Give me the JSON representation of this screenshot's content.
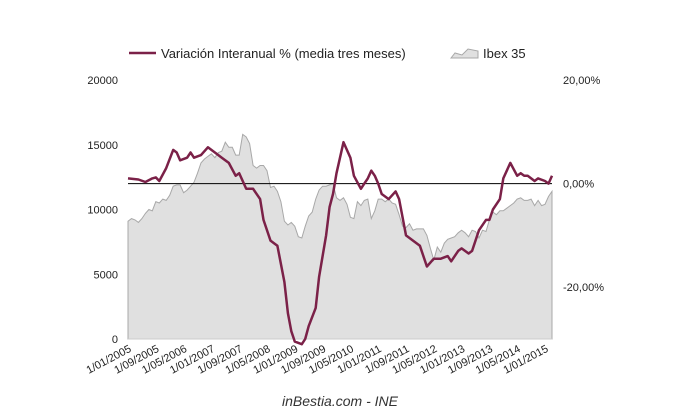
{
  "chart_data": {
    "type": "line+area",
    "legend": {
      "line_label": "Variación Interanual % (media tres meses)",
      "area_label": "Ibex 35",
      "position": "top"
    },
    "colors": {
      "line": "#7b2148",
      "area_fill": "#e0e0e0",
      "area_stroke": "#a8a8a8",
      "zero_line": "#000000"
    },
    "x_tick_labels": [
      "1/01/2005",
      "1/09/2005",
      "1/05/2006",
      "1/01/2007",
      "1/09/2007",
      "1/05/2008",
      "1/01/2009",
      "1/09/2009",
      "1/05/2010",
      "1/01/2011",
      "1/09/2011",
      "1/05/2012",
      "1/01/2013",
      "1/09/2013",
      "1/05/2014",
      "1/01/2015"
    ],
    "x_range": [
      "2005-01",
      "2015-03"
    ],
    "left_axis": {
      "label": "",
      "ticks": [
        "20000",
        "15000",
        "10000",
        "5000",
        "0"
      ],
      "ylim": [
        0,
        20000
      ]
    },
    "right_axis": {
      "label": "",
      "ticks": [
        "20,00%",
        "0,00%",
        "-20,00%"
      ],
      "ylim": [
        -30,
        20
      ]
    },
    "grid": false,
    "ibex_35": [
      [
        "2005-01",
        9100
      ],
      [
        "2005-02",
        9300
      ],
      [
        "2005-03",
        9200
      ],
      [
        "2005-04",
        9000
      ],
      [
        "2005-05",
        9300
      ],
      [
        "2005-06",
        9700
      ],
      [
        "2005-07",
        10000
      ],
      [
        "2005-08",
        9900
      ],
      [
        "2005-09",
        10600
      ],
      [
        "2005-10",
        10500
      ],
      [
        "2005-11",
        10800
      ],
      [
        "2005-12",
        10700
      ],
      [
        "2006-01",
        11100
      ],
      [
        "2006-02",
        11800
      ],
      [
        "2006-03",
        11900
      ],
      [
        "2006-04",
        11900
      ],
      [
        "2006-05",
        11300
      ],
      [
        "2006-06",
        11500
      ],
      [
        "2006-07",
        11800
      ],
      [
        "2006-08",
        12100
      ],
      [
        "2006-09",
        12800
      ],
      [
        "2006-10",
        13600
      ],
      [
        "2006-11",
        13900
      ],
      [
        "2006-12",
        14100
      ],
      [
        "2007-01",
        14300
      ],
      [
        "2007-02",
        14000
      ],
      [
        "2007-03",
        14400
      ],
      [
        "2007-04",
        14500
      ],
      [
        "2007-05",
        15200
      ],
      [
        "2007-06",
        14800
      ],
      [
        "2007-07",
        14800
      ],
      [
        "2007-08",
        14200
      ],
      [
        "2007-09",
        14200
      ],
      [
        "2007-10",
        15800
      ],
      [
        "2007-11",
        15600
      ],
      [
        "2007-12",
        15100
      ],
      [
        "2008-01",
        13400
      ],
      [
        "2008-02",
        13200
      ],
      [
        "2008-03",
        13400
      ],
      [
        "2008-04",
        13400
      ],
      [
        "2008-05",
        13000
      ],
      [
        "2008-06",
        11700
      ],
      [
        "2008-07",
        11800
      ],
      [
        "2008-08",
        11400
      ],
      [
        "2008-09",
        10600
      ],
      [
        "2008-10",
        9100
      ],
      [
        "2008-11",
        8800
      ],
      [
        "2008-12",
        9000
      ],
      [
        "2009-01",
        8700
      ],
      [
        "2009-02",
        7900
      ],
      [
        "2009-03",
        7800
      ],
      [
        "2009-04",
        8700
      ],
      [
        "2009-05",
        9500
      ],
      [
        "2009-06",
        9800
      ],
      [
        "2009-07",
        10800
      ],
      [
        "2009-08",
        11500
      ],
      [
        "2009-09",
        11800
      ],
      [
        "2009-10",
        11800
      ],
      [
        "2009-11",
        11900
      ],
      [
        "2009-12",
        12000
      ],
      [
        "2010-01",
        10900
      ],
      [
        "2010-02",
        10700
      ],
      [
        "2010-03",
        10900
      ],
      [
        "2010-04",
        10400
      ],
      [
        "2010-05",
        9400
      ],
      [
        "2010-06",
        9300
      ],
      [
        "2010-07",
        10600
      ],
      [
        "2010-08",
        10300
      ],
      [
        "2010-09",
        10700
      ],
      [
        "2010-10",
        10800
      ],
      [
        "2010-11",
        9300
      ],
      [
        "2010-12",
        9900
      ],
      [
        "2011-01",
        10800
      ],
      [
        "2011-02",
        10800
      ],
      [
        "2011-03",
        10600
      ],
      [
        "2011-04",
        10800
      ],
      [
        "2011-05",
        10500
      ],
      [
        "2011-06",
        10400
      ],
      [
        "2011-07",
        9600
      ],
      [
        "2011-08",
        8700
      ],
      [
        "2011-09",
        8600
      ],
      [
        "2011-10",
        8900
      ],
      [
        "2011-11",
        8400
      ],
      [
        "2011-12",
        8500
      ],
      [
        "2012-01",
        8500
      ],
      [
        "2012-02",
        8500
      ],
      [
        "2012-03",
        8000
      ],
      [
        "2012-04",
        7000
      ],
      [
        "2012-05",
        6100
      ],
      [
        "2012-06",
        7100
      ],
      [
        "2012-07",
        6700
      ],
      [
        "2012-08",
        7400
      ],
      [
        "2012-09",
        7700
      ],
      [
        "2012-10",
        7800
      ],
      [
        "2012-11",
        7900
      ],
      [
        "2012-12",
        8200
      ],
      [
        "2013-01",
        8400
      ],
      [
        "2013-02",
        8200
      ],
      [
        "2013-03",
        7900
      ],
      [
        "2013-04",
        8400
      ],
      [
        "2013-05",
        8300
      ],
      [
        "2013-06",
        7800
      ],
      [
        "2013-07",
        8400
      ],
      [
        "2013-08",
        8300
      ],
      [
        "2013-09",
        9200
      ],
      [
        "2013-10",
        9800
      ],
      [
        "2013-11",
        9600
      ],
      [
        "2013-12",
        9900
      ],
      [
        "2014-01",
        9900
      ],
      [
        "2014-02",
        10100
      ],
      [
        "2014-03",
        10300
      ],
      [
        "2014-04",
        10500
      ],
      [
        "2014-05",
        10800
      ],
      [
        "2014-06",
        10900
      ],
      [
        "2014-07",
        10700
      ],
      [
        "2014-08",
        10700
      ],
      [
        "2014-09",
        10800
      ],
      [
        "2014-10",
        10300
      ],
      [
        "2014-11",
        10700
      ],
      [
        "2014-12",
        10300
      ],
      [
        "2015-01",
        10400
      ],
      [
        "2015-02",
        11000
      ],
      [
        "2015-03",
        11400
      ]
    ],
    "variacion_interanual_pct": [
      [
        "2005-01",
        1.0
      ],
      [
        "2005-04",
        0.8
      ],
      [
        "2005-06",
        0.3
      ],
      [
        "2005-08",
        1.0
      ],
      [
        "2005-09",
        1.2
      ],
      [
        "2005-10",
        0.5
      ],
      [
        "2005-12",
        3.0
      ],
      [
        "2006-02",
        6.5
      ],
      [
        "2006-03",
        6.0
      ],
      [
        "2006-04",
        4.5
      ],
      [
        "2006-06",
        5.0
      ],
      [
        "2006-07",
        6.0
      ],
      [
        "2006-08",
        5.0
      ],
      [
        "2006-10",
        5.5
      ],
      [
        "2006-12",
        7.0
      ],
      [
        "2007-02",
        6.0
      ],
      [
        "2007-04",
        5.0
      ],
      [
        "2007-06",
        4.0
      ],
      [
        "2007-08",
        1.5
      ],
      [
        "2007-09",
        2.0
      ],
      [
        "2007-11",
        -1.0
      ],
      [
        "2008-01",
        -1.0
      ],
      [
        "2008-03",
        -3.0
      ],
      [
        "2008-04",
        -7.0
      ],
      [
        "2008-06",
        -11.0
      ],
      [
        "2008-07",
        -11.5
      ],
      [
        "2008-08",
        -12.0
      ],
      [
        "2008-10",
        -19.0
      ],
      [
        "2008-11",
        -25.0
      ],
      [
        "2008-12",
        -28.5
      ],
      [
        "2009-01",
        -30.5
      ],
      [
        "2009-03",
        -31.0
      ],
      [
        "2009-04",
        -30.0
      ],
      [
        "2009-05",
        -27.5
      ],
      [
        "2009-07",
        -24.0
      ],
      [
        "2009-08",
        -18.0
      ],
      [
        "2009-10",
        -10.0
      ],
      [
        "2009-11",
        -4.5
      ],
      [
        "2009-12",
        -2.0
      ],
      [
        "2010-01",
        2.0
      ],
      [
        "2010-03",
        8.0
      ],
      [
        "2010-05",
        5.0
      ],
      [
        "2010-06",
        1.5
      ],
      [
        "2010-08",
        -1.0
      ],
      [
        "2010-09",
        0.0
      ],
      [
        "2010-10",
        1.0
      ],
      [
        "2010-11",
        2.5
      ],
      [
        "2010-12",
        1.5
      ],
      [
        "2011-01",
        0.0
      ],
      [
        "2011-02",
        -2.0
      ],
      [
        "2011-04",
        -3.0
      ],
      [
        "2011-06",
        -1.5
      ],
      [
        "2011-07",
        -3.0
      ],
      [
        "2011-09",
        -10.0
      ],
      [
        "2011-11",
        -11.0
      ],
      [
        "2012-01",
        -12.0
      ],
      [
        "2012-03",
        -16.0
      ],
      [
        "2012-05",
        -14.5
      ],
      [
        "2012-07",
        -14.5
      ],
      [
        "2012-09",
        -14.0
      ],
      [
        "2012-10",
        -15.0
      ],
      [
        "2012-12",
        -13.0
      ],
      [
        "2013-01",
        -12.5
      ],
      [
        "2013-03",
        -13.5
      ],
      [
        "2013-04",
        -13.0
      ],
      [
        "2013-05",
        -11.0
      ],
      [
        "2013-06",
        -9.0
      ],
      [
        "2013-08",
        -7.0
      ],
      [
        "2013-09",
        -7.0
      ],
      [
        "2013-10",
        -5.0
      ],
      [
        "2013-12",
        -3.0
      ],
      [
        "2014-01",
        1.0
      ],
      [
        "2014-03",
        4.0
      ],
      [
        "2014-05",
        1.5
      ],
      [
        "2014-06",
        2.0
      ],
      [
        "2014-07",
        1.5
      ],
      [
        "2014-08",
        1.5
      ],
      [
        "2014-10",
        0.5
      ],
      [
        "2014-11",
        1.0
      ],
      [
        "2015-01",
        0.5
      ],
      [
        "2015-02",
        0.0
      ],
      [
        "2015-03",
        1.5
      ]
    ]
  },
  "footer": {
    "source": "inBestia.com - INE"
  }
}
